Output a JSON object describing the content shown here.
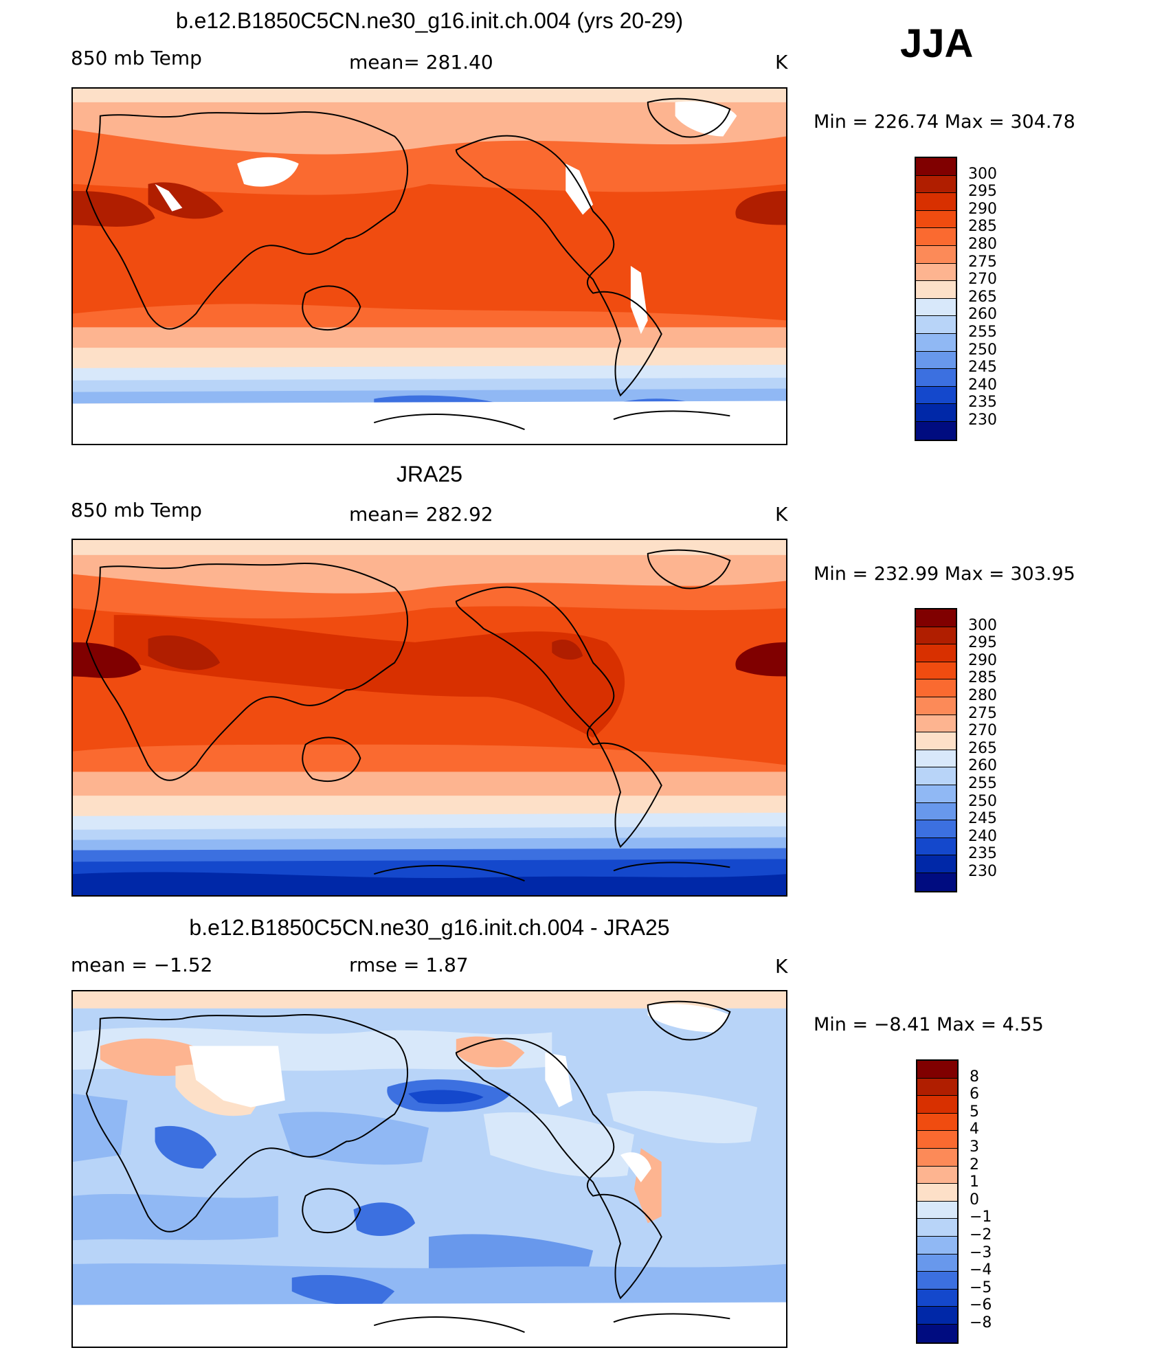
{
  "season": "JJA",
  "panels": [
    {
      "title": "b.e12.B1850C5CN.ne30_g16.init.ch.004 (yrs 20-29)",
      "left_label": "850 mb Temp",
      "center_label": "mean=  281.40",
      "right_label": "K",
      "minmax": "Min  =  226.74  Max  =  304.78",
      "levels": [
        "300",
        "295",
        "290",
        "285",
        "280",
        "275",
        "270",
        "265",
        "260",
        "255",
        "250",
        "245",
        "240",
        "235",
        "230"
      ]
    },
    {
      "title": "JRA25",
      "left_label": "850 mb Temp",
      "center_label": "mean=  282.92",
      "right_label": "K",
      "minmax": "Min  =  232.99  Max  =  303.95",
      "levels": [
        "300",
        "295",
        "290",
        "285",
        "280",
        "275",
        "270",
        "265",
        "260",
        "255",
        "250",
        "245",
        "240",
        "235",
        "230"
      ]
    },
    {
      "title": "b.e12.B1850C5CN.ne30_g16.init.ch.004 - JRA25",
      "left_label": "mean  =    −1.52",
      "center_label": "rmse  =     1.87",
      "right_label": "K",
      "minmax": "Min  =    −8.41  Max  =     4.55",
      "levels": [
        "8",
        "6",
        "5",
        "4",
        "3",
        "2",
        "1",
        "0",
        "−1",
        "−2",
        "−3",
        "−4",
        "−5",
        "−6",
        "−8"
      ]
    }
  ],
  "colors": {
    "warm_scale": [
      "#800000",
      "#b01e00",
      "#d83000",
      "#f04c10",
      "#fa6a30",
      "#fc8a58",
      "#fdb490",
      "#fde0c8",
      "#d8e8fa",
      "#b8d4f8",
      "#90b8f4",
      "#6898ec",
      "#3c70e0",
      "#1448cc",
      "#0028a8",
      "#000c80"
    ],
    "diff_scale": [
      "#800000",
      "#b01e00",
      "#d83000",
      "#f04c10",
      "#fa6a30",
      "#fc8a58",
      "#fdb490",
      "#fde0c8",
      "#d8e8fa",
      "#b8d4f8",
      "#90b8f4",
      "#6898ec",
      "#3c70e0",
      "#1448cc",
      "#0028a8",
      "#000c80"
    ]
  }
}
